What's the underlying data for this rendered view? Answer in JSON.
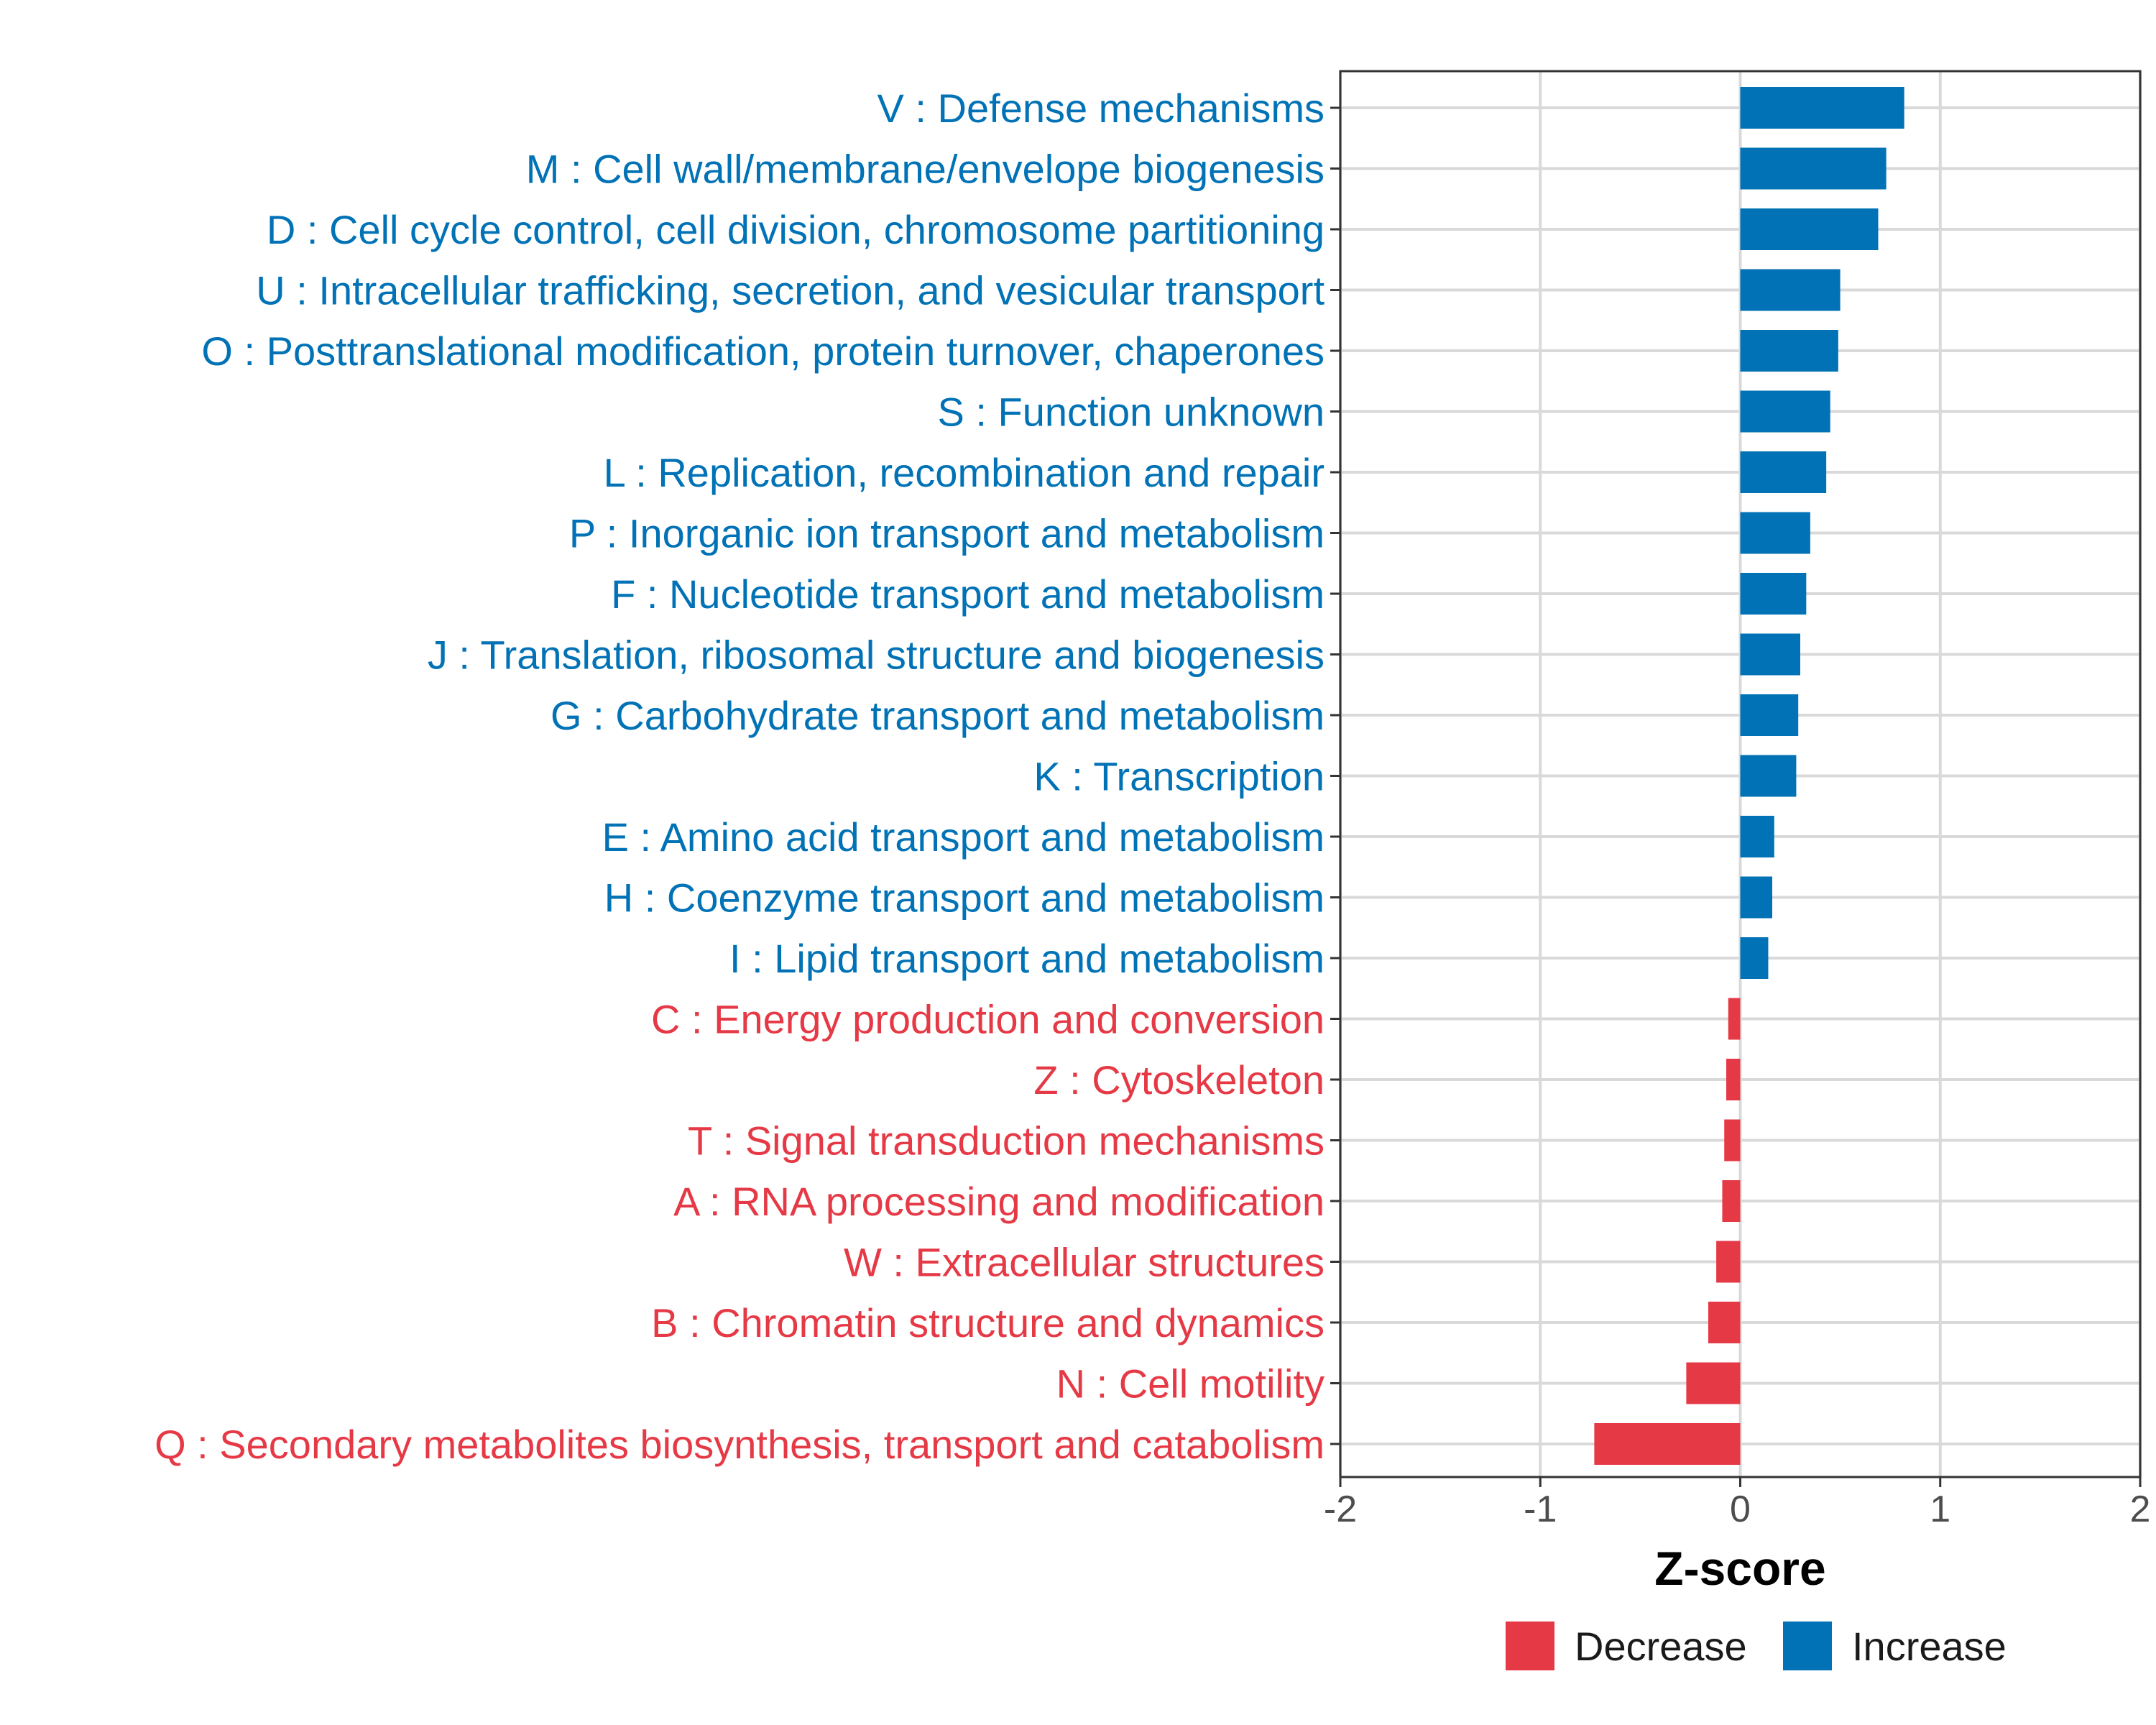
{
  "chart_data": {
    "type": "bar",
    "orientation": "horizontal",
    "xlabel": "Z-score",
    "xlim": [
      -2,
      2
    ],
    "xticks": [
      "-2",
      "-1",
      "0",
      "1",
      "2"
    ],
    "colors": {
      "Increase": "#0072B5",
      "Decrease": "#E63946"
    },
    "legend": {
      "position": "bottom",
      "entries": [
        "Decrease",
        "Increase"
      ]
    },
    "grid": true,
    "categories": [
      {
        "label": "V : Defense mechanisms",
        "value": 0.82,
        "direction": "Increase"
      },
      {
        "label": "M : Cell wall/membrane/envelope biogenesis",
        "value": 0.73,
        "direction": "Increase"
      },
      {
        "label": "D : Cell cycle control, cell division, chromosome partitioning",
        "value": 0.69,
        "direction": "Increase"
      },
      {
        "label": "U : Intracellular trafficking, secretion, and vesicular transport",
        "value": 0.5,
        "direction": "Increase"
      },
      {
        "label": "O : Posttranslational modification, protein turnover, chaperones",
        "value": 0.49,
        "direction": "Increase"
      },
      {
        "label": "S : Function unknown",
        "value": 0.45,
        "direction": "Increase"
      },
      {
        "label": "L : Replication, recombination and repair",
        "value": 0.43,
        "direction": "Increase"
      },
      {
        "label": "P : Inorganic ion transport and metabolism",
        "value": 0.35,
        "direction": "Increase"
      },
      {
        "label": "F : Nucleotide transport and metabolism",
        "value": 0.33,
        "direction": "Increase"
      },
      {
        "label": "J : Translation, ribosomal structure and biogenesis",
        "value": 0.3,
        "direction": "Increase"
      },
      {
        "label": "G : Carbohydrate transport and metabolism",
        "value": 0.29,
        "direction": "Increase"
      },
      {
        "label": "K : Transcription",
        "value": 0.28,
        "direction": "Increase"
      },
      {
        "label": "E : Amino acid transport and metabolism",
        "value": 0.17,
        "direction": "Increase"
      },
      {
        "label": "H : Coenzyme transport and metabolism",
        "value": 0.16,
        "direction": "Increase"
      },
      {
        "label": "I : Lipid transport and metabolism",
        "value": 0.14,
        "direction": "Increase"
      },
      {
        "label": "C : Energy production and conversion",
        "value": -0.06,
        "direction": "Decrease"
      },
      {
        "label": "Z : Cytoskeleton",
        "value": -0.07,
        "direction": "Decrease"
      },
      {
        "label": "T : Signal transduction mechanisms",
        "value": -0.08,
        "direction": "Decrease"
      },
      {
        "label": "A : RNA processing and modification",
        "value": -0.09,
        "direction": "Decrease"
      },
      {
        "label": "W : Extracellular structures",
        "value": -0.12,
        "direction": "Decrease"
      },
      {
        "label": "B : Chromatin structure and dynamics",
        "value": -0.16,
        "direction": "Decrease"
      },
      {
        "label": "N : Cell motility",
        "value": -0.27,
        "direction": "Decrease"
      },
      {
        "label": "Q : Secondary metabolites biosynthesis, transport and catabolism",
        "value": -0.73,
        "direction": "Decrease"
      }
    ]
  }
}
